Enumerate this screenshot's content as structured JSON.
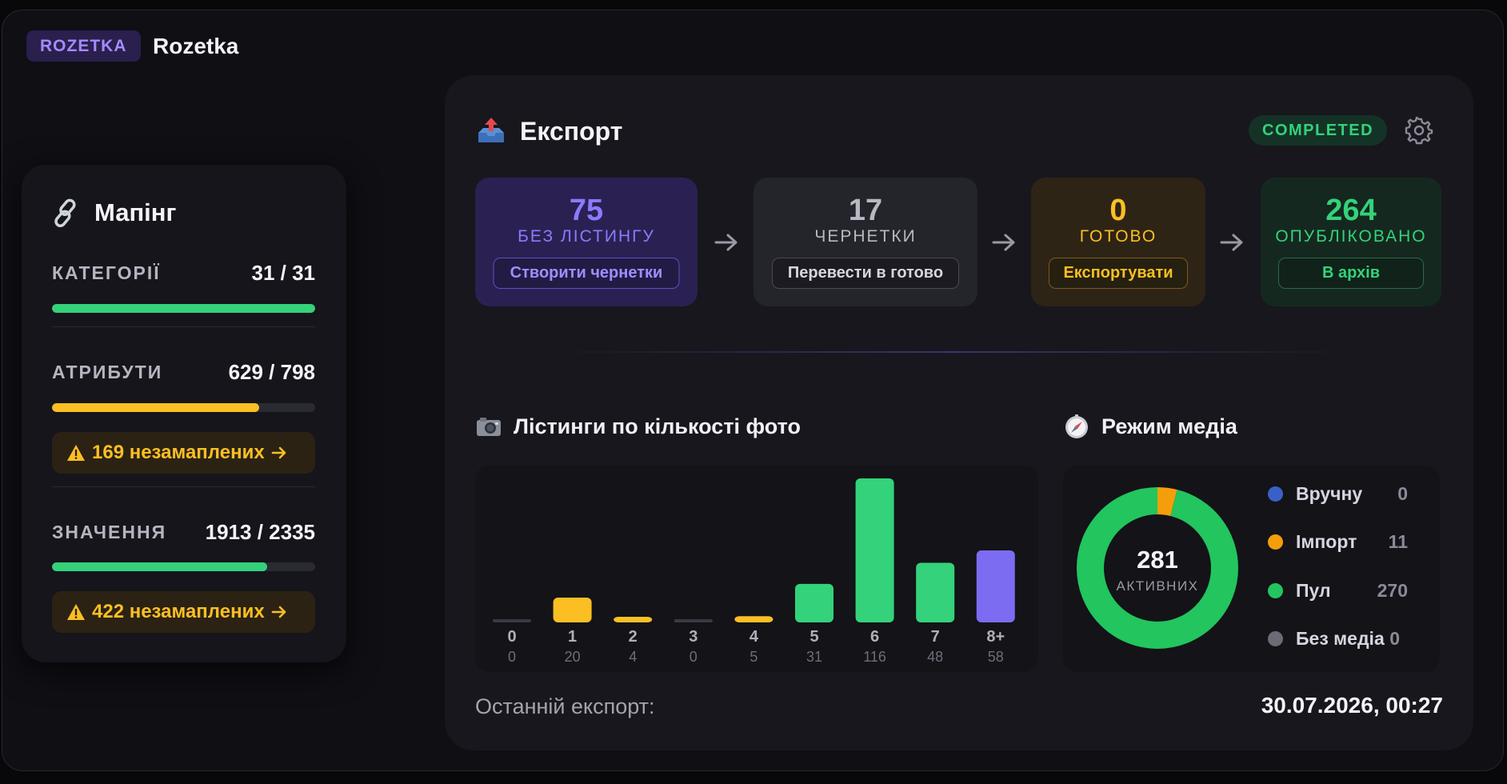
{
  "header": {
    "tag": "ROZETKA",
    "title": "Rozetka"
  },
  "mapping": {
    "title": "Мапінг",
    "sections": [
      {
        "label": "КАТЕГОРІЇ",
        "value": "31 / 31",
        "progress": 1.0,
        "color": "#34d27a"
      },
      {
        "label": "АТРИБУТИ",
        "value": "629 / 798",
        "progress": 0.788,
        "color": "#fbbf24",
        "warning": "169 незамаплених"
      },
      {
        "label": "ЗНАЧЕННЯ",
        "value": "1913 / 2335",
        "progress": 0.819,
        "color": "#34d27a",
        "warning": "422 незамаплених"
      }
    ]
  },
  "export": {
    "title": "Експорт",
    "status": "COMPLETED",
    "stages": [
      {
        "count": "75",
        "label": "БЕЗ ЛІСТИНГУ",
        "action": "Створити чернетки"
      },
      {
        "count": "17",
        "label": "ЧЕРНЕТКИ",
        "action": "Перевести в готово"
      },
      {
        "count": "0",
        "label": "ГОТОВО",
        "action": "Експортувати"
      },
      {
        "count": "264",
        "label": "ОПУБЛІКОВАНО",
        "action": "В архів"
      }
    ],
    "photos_title": "Лістинги по кількості фото",
    "media_title": "Режим медіа",
    "last_export_label": "Останній експорт:",
    "last_export_value": "30.07.2026, 00:27"
  },
  "chart_data": [
    {
      "type": "bar",
      "title": "Лістинги по кількості фото",
      "categories": [
        "0",
        "1",
        "2",
        "3",
        "4",
        "5",
        "6",
        "7",
        "8+"
      ],
      "values": [
        0,
        20,
        4,
        0,
        5,
        31,
        116,
        48,
        58
      ],
      "colors": [
        "#3a3a44",
        "#fbbf24",
        "#fbbf24",
        "#3a3a44",
        "#fbbf24",
        "#34d27a",
        "#34d27a",
        "#34d27a",
        "#7c6cf2"
      ]
    },
    {
      "type": "pie",
      "title": "Режим медіа",
      "center_value": "281",
      "center_label": "АКТИВНИХ",
      "labels": [
        "Вручну",
        "Імпорт",
        "Пул",
        "Без медіа"
      ],
      "values": [
        0,
        11,
        270,
        0
      ],
      "colors": [
        "#3b5fc9",
        "#f59e0b",
        "#22c55e",
        "#6b6b76"
      ]
    }
  ]
}
